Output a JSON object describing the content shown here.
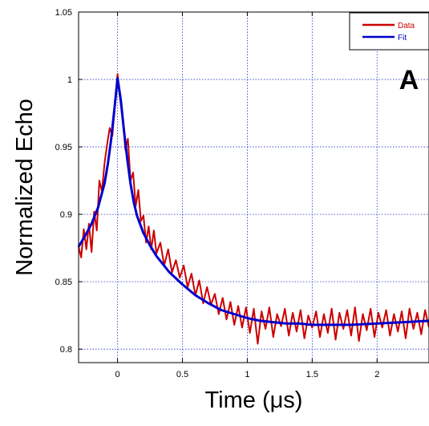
{
  "chart_data": {
    "type": "line",
    "xlabel": "Time (μs)",
    "ylabel": "Normalized Echo",
    "panel_label": "A",
    "xlim": [
      -0.3,
      2.4
    ],
    "ylim": [
      0.79,
      1.05
    ],
    "x_ticks": [
      0,
      0.5,
      1,
      1.5,
      2
    ],
    "x_tick_labels": [
      "0",
      "0.5",
      "1",
      "1.5",
      "2"
    ],
    "y_ticks": [
      0.8,
      0.85,
      0.9,
      0.95,
      1,
      1.05
    ],
    "y_tick_labels": [
      "0.8",
      "0.85",
      "0.9",
      "0.95",
      "1",
      "1.05"
    ],
    "grid": true,
    "legend_position": "top-right",
    "series": [
      {
        "name": "Data",
        "color": "#cc0000",
        "x": [
          -0.3,
          -0.28,
          -0.26,
          -0.24,
          -0.22,
          -0.2,
          -0.18,
          -0.16,
          -0.14,
          -0.12,
          -0.1,
          -0.08,
          -0.06,
          -0.04,
          -0.02,
          0,
          0.02,
          0.04,
          0.06,
          0.08,
          0.1,
          0.12,
          0.14,
          0.16,
          0.18,
          0.2,
          0.22,
          0.24,
          0.26,
          0.28,
          0.3,
          0.33,
          0.36,
          0.39,
          0.42,
          0.45,
          0.48,
          0.51,
          0.54,
          0.57,
          0.6,
          0.63,
          0.66,
          0.69,
          0.72,
          0.75,
          0.78,
          0.81,
          0.84,
          0.87,
          0.9,
          0.93,
          0.96,
          0.99,
          1.02,
          1.05,
          1.08,
          1.11,
          1.14,
          1.17,
          1.2,
          1.23,
          1.26,
          1.29,
          1.32,
          1.35,
          1.38,
          1.41,
          1.44,
          1.47,
          1.5,
          1.53,
          1.56,
          1.59,
          1.62,
          1.65,
          1.68,
          1.71,
          1.74,
          1.77,
          1.8,
          1.83,
          1.86,
          1.89,
          1.92,
          1.95,
          1.98,
          2.01,
          2.04,
          2.07,
          2.1,
          2.13,
          2.16,
          2.19,
          2.22,
          2.25,
          2.28,
          2.31,
          2.34,
          2.37,
          2.4
        ],
        "values": [
          0.876,
          0.868,
          0.889,
          0.874,
          0.893,
          0.872,
          0.902,
          0.888,
          0.925,
          0.917,
          0.938,
          0.952,
          0.964,
          0.958,
          0.981,
          1.004,
          0.985,
          0.972,
          0.948,
          0.956,
          0.925,
          0.931,
          0.906,
          0.918,
          0.895,
          0.899,
          0.879,
          0.891,
          0.874,
          0.888,
          0.871,
          0.879,
          0.862,
          0.874,
          0.857,
          0.866,
          0.853,
          0.862,
          0.846,
          0.856,
          0.84,
          0.851,
          0.834,
          0.846,
          0.833,
          0.841,
          0.826,
          0.838,
          0.822,
          0.835,
          0.818,
          0.832,
          0.816,
          0.831,
          0.812,
          0.83,
          0.804,
          0.828,
          0.815,
          0.831,
          0.809,
          0.826,
          0.817,
          0.83,
          0.81,
          0.827,
          0.813,
          0.829,
          0.808,
          0.825,
          0.816,
          0.828,
          0.809,
          0.826,
          0.812,
          0.83,
          0.807,
          0.827,
          0.815,
          0.829,
          0.81,
          0.831,
          0.806,
          0.826,
          0.814,
          0.83,
          0.809,
          0.827,
          0.816,
          0.829,
          0.81,
          0.826,
          0.813,
          0.828,
          0.808,
          0.83,
          0.815,
          0.827,
          0.811,
          0.829,
          0.816
        ]
      },
      {
        "name": "Fit",
        "color": "#0000cc",
        "x": [
          -0.3,
          -0.25,
          -0.2,
          -0.15,
          -0.1,
          -0.075,
          -0.05,
          -0.025,
          0,
          0.025,
          0.05,
          0.075,
          0.1,
          0.125,
          0.15,
          0.2,
          0.25,
          0.3,
          0.35,
          0.4,
          0.5,
          0.6,
          0.7,
          0.8,
          0.9,
          1,
          1.1,
          1.2,
          1.3,
          1.4,
          1.5,
          1.6,
          1.8,
          2,
          2.2,
          2.4
        ],
        "values": [
          0.876,
          0.884,
          0.893,
          0.905,
          0.923,
          0.937,
          0.955,
          0.977,
          1.001,
          0.985,
          0.962,
          0.941,
          0.923,
          0.909,
          0.899,
          0.886,
          0.877,
          0.869,
          0.863,
          0.857,
          0.848,
          0.84,
          0.834,
          0.829,
          0.826,
          0.823,
          0.821,
          0.82,
          0.819,
          0.819,
          0.818,
          0.818,
          0.818,
          0.819,
          0.82,
          0.821
        ]
      }
    ]
  }
}
